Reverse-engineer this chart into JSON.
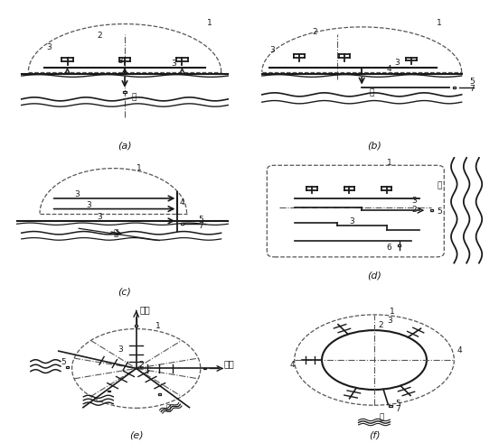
{
  "bg_color": "#ffffff",
  "lc": "#1a1a1a",
  "dc": "#555555",
  "labels": [
    "(a)",
    "(b)",
    "(c)",
    "(d)",
    "(e)",
    "(f)"
  ],
  "river_char": "河",
  "irrigate_char": "灌派"
}
